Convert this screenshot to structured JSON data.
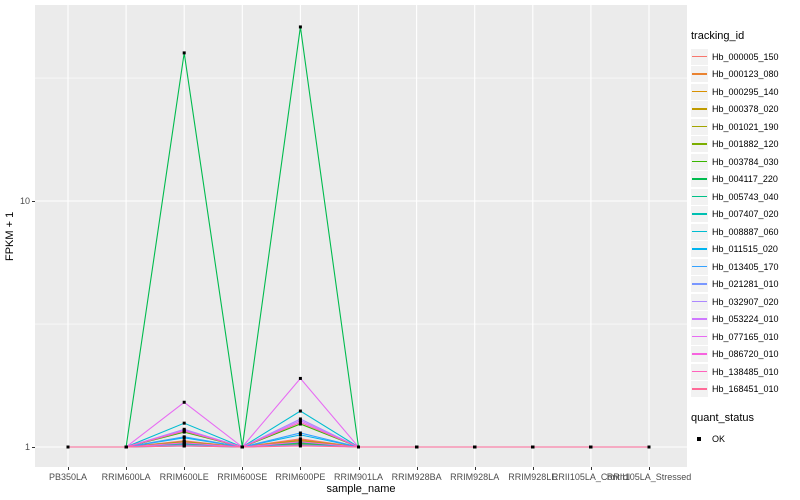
{
  "figure": {
    "background": "#FFFFFF",
    "panel_background": "#EBEBEB",
    "gridline_color": "#FFFFFF",
    "tick_label_color": "#4D4D4D",
    "axis_title_color": "#000000",
    "legend_key_background": "#F2F2F2",
    "point_color": "#000000"
  },
  "chart_data": {
    "type": "line",
    "title": "",
    "xlabel": "sample_name",
    "ylabel": "FPKM + 1",
    "y_scale": "log10",
    "ylim": [
      1,
      62
    ],
    "y_major_ticks": [
      1,
      10
    ],
    "y_minor_gridlines": [
      3.16,
      31.6
    ],
    "grid": true,
    "legend_position": "right",
    "point_shape": "filled-square",
    "categories": [
      "PB350LA",
      "RRIM600LA",
      "RRIM600LE",
      "RRIM600SE",
      "RRIM600PE",
      "RRIM901LA",
      "RRIM928BA",
      "RRIM928LA",
      "RRIM928LE",
      "RRII105LA_Control",
      "RRII105LA_Stressed"
    ],
    "series": [
      {
        "name": "Hb_000005_150",
        "color": "#F8766D",
        "values": [
          1,
          1,
          1.06,
          1,
          1.08,
          1,
          1,
          1,
          1,
          1,
          1
        ]
      },
      {
        "name": "Hb_000123_080",
        "color": "#EA8331",
        "values": [
          1,
          1,
          1.05,
          1,
          1.07,
          1,
          1,
          1,
          1,
          1,
          1
        ]
      },
      {
        "name": "Hb_000295_140",
        "color": "#D89000",
        "values": [
          1,
          1,
          1.03,
          1,
          1.04,
          1,
          1,
          1,
          1,
          1,
          1
        ]
      },
      {
        "name": "Hb_000378_020",
        "color": "#C09B00",
        "values": [
          1,
          1,
          1.02,
          1,
          1.03,
          1,
          1,
          1,
          1,
          1,
          1
        ]
      },
      {
        "name": "Hb_001021_190",
        "color": "#A3A500",
        "values": [
          1,
          1,
          1.05,
          1,
          1.06,
          1,
          1,
          1,
          1,
          1,
          1
        ]
      },
      {
        "name": "Hb_001882_120",
        "color": "#7CAE00",
        "values": [
          1,
          1,
          1.02,
          1,
          1.03,
          1,
          1,
          1,
          1,
          1,
          1
        ]
      },
      {
        "name": "Hb_003784_030",
        "color": "#39B600",
        "values": [
          1,
          1,
          1.15,
          1,
          1.24,
          1,
          1,
          1,
          1,
          1,
          1
        ]
      },
      {
        "name": "Hb_004117_220",
        "color": "#00BB4E",
        "values": [
          1,
          1,
          40,
          1,
          51,
          1,
          1,
          1,
          1,
          1,
          1
        ]
      },
      {
        "name": "Hb_005743_040",
        "color": "#00C087",
        "values": [
          1,
          1,
          1.03,
          1,
          1.04,
          1,
          1,
          1,
          1,
          1,
          1
        ]
      },
      {
        "name": "Hb_007407_020",
        "color": "#00C0B2",
        "values": [
          1,
          1,
          1.01,
          1,
          1.02,
          1,
          1,
          1,
          1,
          1,
          1
        ]
      },
      {
        "name": "Hb_008887_060",
        "color": "#00BDD1",
        "values": [
          1,
          1,
          1.25,
          1,
          1.4,
          1,
          1,
          1,
          1,
          1,
          1
        ]
      },
      {
        "name": "Hb_011515_020",
        "color": "#00B4EF",
        "values": [
          1,
          1,
          1.09,
          1,
          1.12,
          1,
          1,
          1,
          1,
          1,
          1
        ]
      },
      {
        "name": "Hb_013405_170",
        "color": "#35A2FF",
        "values": [
          1,
          1,
          1.1,
          1,
          1.14,
          1,
          1,
          1,
          1,
          1,
          1
        ]
      },
      {
        "name": "Hb_021281_010",
        "color": "#7997FF",
        "values": [
          1,
          1,
          1.02,
          1,
          1.02,
          1,
          1,
          1,
          1,
          1,
          1
        ]
      },
      {
        "name": "Hb_032907_020",
        "color": "#AC88FF",
        "values": [
          1,
          1,
          1.18,
          1,
          1.3,
          1,
          1,
          1,
          1,
          1,
          1
        ]
      },
      {
        "name": "Hb_053224_010",
        "color": "#CF78FF",
        "values": [
          1,
          1,
          1.17,
          1,
          1.28,
          1,
          1,
          1,
          1,
          1,
          1
        ]
      },
      {
        "name": "Hb_077165_010",
        "color": "#E76BF3",
        "values": [
          1,
          1,
          1.52,
          1,
          1.9,
          1,
          1,
          1,
          1,
          1,
          1
        ]
      },
      {
        "name": "Hb_086720_010",
        "color": "#F763DF",
        "values": [
          1,
          1,
          1.04,
          1,
          1.05,
          1,
          1,
          1,
          1,
          1,
          1
        ]
      },
      {
        "name": "Hb_138485_010",
        "color": "#FF62BC",
        "values": [
          1,
          1,
          1.16,
          1,
          1.26,
          1,
          1,
          1,
          1,
          1,
          1
        ]
      },
      {
        "name": "Hb_168451_010",
        "color": "#FF6A98",
        "values": [
          1,
          1,
          1.01,
          1,
          1.01,
          1,
          1,
          1,
          1,
          1,
          1
        ]
      }
    ]
  },
  "legend": {
    "tracking_title": "tracking_id",
    "quant_title": "quant_status",
    "quant_items": [
      "OK"
    ]
  }
}
